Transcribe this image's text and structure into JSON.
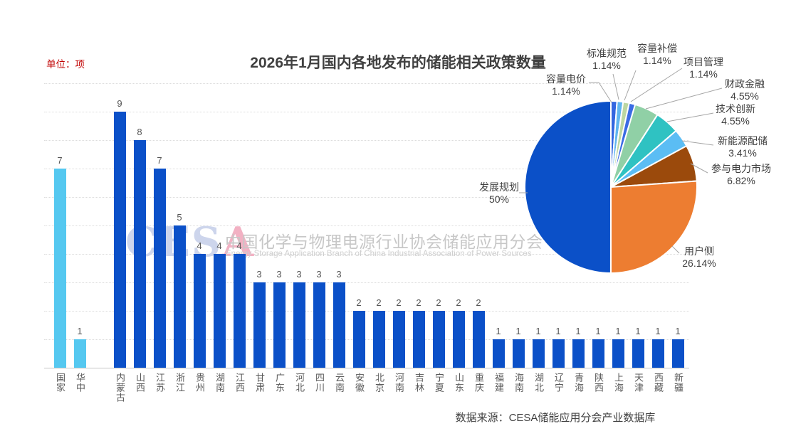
{
  "title": "2026年1月国内各地发布的储能相关政策数量",
  "unit_label": "单位：项",
  "source": "数据来源：CESA储能应用分会产业数据库",
  "watermark": {
    "logo_letters": [
      "C",
      "E",
      "S",
      "A"
    ],
    "cn": "中国化学与物理电源行业协会储能应用分会",
    "en": "Energy Storage Application Branch of China Industrial Association of Power Sources"
  },
  "colors": {
    "bar_default": "#0B50C8",
    "bar_highlight": "#55C8F0",
    "title_text": "#404040",
    "unit_text": "#C00000",
    "gridline": "#DCDCDC"
  },
  "chart_data": [
    {
      "type": "bar",
      "categories": [
        "国家",
        "华中",
        "内蒙古",
        "山西",
        "江苏",
        "浙江",
        "贵州",
        "湖南",
        "江西",
        "甘肃",
        "广东",
        "河北",
        "四川",
        "云南",
        "安徽",
        "北京",
        "河南",
        "吉林",
        "宁夏",
        "山东",
        "重庆",
        "福建",
        "海南",
        "湖北",
        "辽宁",
        "青海",
        "陕西",
        "上海",
        "天津",
        "西藏",
        "新疆"
      ],
      "values": [
        7,
        1,
        9,
        8,
        7,
        5,
        4,
        4,
        4,
        3,
        3,
        3,
        3,
        3,
        2,
        2,
        2,
        2,
        2,
        2,
        2,
        1,
        1,
        1,
        1,
        1,
        1,
        1,
        1,
        1,
        1
      ],
      "highlight_count": 2,
      "colors": {
        "highlight": "#55C8F0",
        "default": "#0B50C8"
      },
      "ylim": [
        0,
        10
      ],
      "grid": true,
      "group_gap_after_index": 1,
      "xlabel": "",
      "ylabel": "项"
    },
    {
      "type": "pie",
      "legend": "none",
      "label_style": "outside-with-leader-lines",
      "slices": [
        {
          "label": "容量电价",
          "value": 1.14,
          "pct_label": "1.14%",
          "color": "#3366E0"
        },
        {
          "label": "标准规范",
          "value": 1.14,
          "pct_label": "1.14%",
          "color": "#5FB5F0"
        },
        {
          "label": "容量补偿",
          "value": 1.14,
          "pct_label": "1.14%",
          "color": "#BCD7A2"
        },
        {
          "label": "项目管理",
          "value": 1.14,
          "pct_label": "1.14%",
          "color": "#3A6BE4"
        },
        {
          "label": "财政金融",
          "value": 4.55,
          "pct_label": "4.55%",
          "color": "#90D0A6"
        },
        {
          "label": "技术创新",
          "value": 4.55,
          "pct_label": "4.55%",
          "color": "#2FC2C2"
        },
        {
          "label": "新能源配储",
          "value": 3.41,
          "pct_label": "3.41%",
          "color": "#5BBDF4"
        },
        {
          "label": "参与电力市场",
          "value": 6.82,
          "pct_label": "6.82%",
          "color": "#9B4A0C"
        },
        {
          "label": "用户侧",
          "value": 26.14,
          "pct_label": "26.14%",
          "color": "#ED7D31"
        },
        {
          "label": "发展规划",
          "value": 50,
          "pct_label": "50%",
          "color": "#0B50C8"
        }
      ]
    }
  ]
}
